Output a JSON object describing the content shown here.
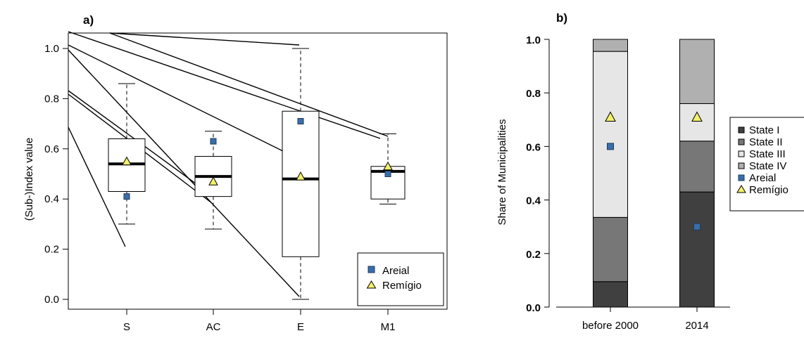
{
  "chart_data": [
    {
      "type": "box",
      "panel_label": "a)",
      "title": "",
      "xlabel": "",
      "ylabel": "(Sub-)Index value",
      "ylim": [
        0,
        1
      ],
      "yticks": [
        "0.0",
        "0.2",
        "0.4",
        "0.6",
        "0.8",
        "1.0"
      ],
      "categories": [
        "S",
        "AC",
        "E",
        "M1"
      ],
      "boxes": [
        {
          "category": "S",
          "whisker_low": 0.3,
          "q1": 0.43,
          "median": 0.54,
          "q3": 0.64,
          "whisker_high": 0.86
        },
        {
          "category": "AC",
          "whisker_low": 0.28,
          "q1": 0.41,
          "median": 0.49,
          "q3": 0.57,
          "whisker_high": 0.67
        },
        {
          "category": "E",
          "whisker_low": 0.0,
          "q1": 0.17,
          "median": 0.48,
          "q3": 0.75,
          "whisker_high": 1.0
        },
        {
          "category": "M1",
          "whisker_low": 0.38,
          "q1": 0.4,
          "median": 0.51,
          "q3": 0.53,
          "whisker_high": 0.66
        }
      ],
      "series": [
        {
          "name": "Areial",
          "marker": "square",
          "color": "#3a6ea8",
          "values": [
            0.41,
            0.63,
            0.71,
            0.5
          ]
        },
        {
          "name": "Remígio",
          "marker": "triangle",
          "color": "#f2f06a",
          "values": [
            0.55,
            0.47,
            0.49,
            0.53
          ]
        }
      ],
      "legend": {
        "position": "bottom-right",
        "entries": [
          "Areial",
          "Remígio"
        ]
      }
    },
    {
      "type": "stacked-bar",
      "panel_label": "b)",
      "title": "",
      "xlabel": "",
      "ylabel": "Share of Municipalities",
      "ylim": [
        0,
        1
      ],
      "yticks": [
        "0.0",
        "0.2",
        "0.4",
        "0.6",
        "0.8",
        "1.0"
      ],
      "categories": [
        "before 2000",
        "2014"
      ],
      "series": [
        {
          "name": "State I",
          "color": "#404040",
          "values": [
            0.095,
            0.43
          ]
        },
        {
          "name": "State II",
          "color": "#777777",
          "values": [
            0.24,
            0.19
          ]
        },
        {
          "name": "State III",
          "color": "#e6e6e6",
          "values": [
            0.62,
            0.14
          ]
        },
        {
          "name": "State IV",
          "color": "#b0b0b0",
          "values": [
            0.045,
            0.24
          ]
        }
      ],
      "points": [
        {
          "name": "Areial",
          "marker": "square",
          "color": "#3a6ea8",
          "values": [
            0.6,
            0.3
          ]
        },
        {
          "name": "Remígio",
          "marker": "triangle",
          "color": "#f2f06a",
          "values": [
            0.71,
            0.71
          ]
        }
      ],
      "legend": {
        "position": "right",
        "entries": [
          "State I",
          "State II",
          "State III",
          "State IV",
          "Areial",
          "Remígio"
        ]
      }
    }
  ]
}
